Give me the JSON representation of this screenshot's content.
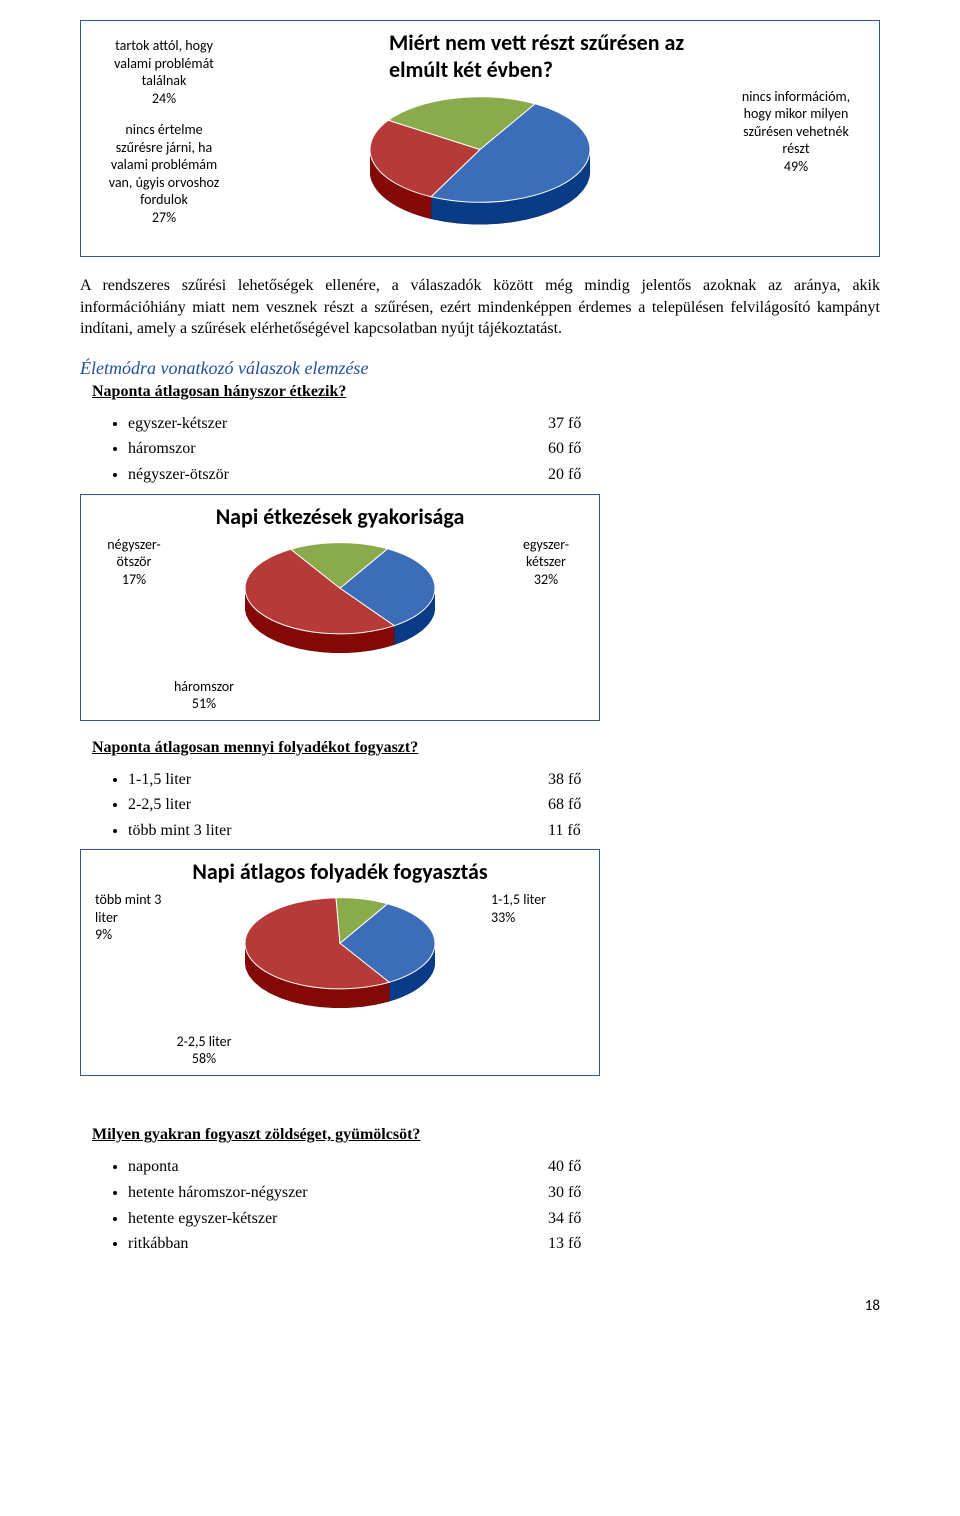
{
  "chart1": {
    "type": "pie",
    "title": "Miért nem vett részt szűrésen az elmúlt két évben?",
    "title_fontsize": 22,
    "background_color": "#ffffff",
    "border_color": "#2a5a9a",
    "slices": [
      {
        "label_lines": [
          "nincs információm,",
          "hogy mikor milyen",
          "szűrésen vehetnék",
          "részt",
          "49%"
        ],
        "value": 49,
        "color": "#3b6db8"
      },
      {
        "label_lines": [
          "nincs értelme",
          "szűrésre járni, ha",
          "valami problémám",
          "van, úgyis orvoshoz",
          "fordulok",
          "27%"
        ],
        "value": 27,
        "color": "#b53a38"
      },
      {
        "label_lines": [
          "tartok attól, hogy",
          "valami problémát",
          "találnak",
          "24%"
        ],
        "value": 24,
        "color": "#8aab4c"
      }
    ],
    "pie_diameter": 220,
    "label_fontsize": 14
  },
  "paragraph": "A rendszeres szűrési lehetőségek ellenére, a válaszadók között még mindig jelentős azoknak az aránya, akik információhiány miatt nem vesznek részt a szűrésen, ezért mindenképpen érdemes a településen felvilágosító kampányt indítani, amely a szűrések elérhetőségével kapcsolatban nyújt tájékoztatást.",
  "section_title": "Életmódra vonatkozó válaszok elemzése",
  "q1": {
    "question": "Naponta átlagosan hányszor étkezik?",
    "items": [
      {
        "k": "egyszer-kétszer",
        "v": "37 fő"
      },
      {
        "k": "háromszor",
        "v": "60 fő"
      },
      {
        "k": "négyszer-ötször",
        "v": "20 fő"
      }
    ]
  },
  "chart2": {
    "type": "pie",
    "title": "Napi étkezések gyakorisága",
    "title_fontsize": 20,
    "background_color": "#ffffff",
    "border_color": "#2a5a9a",
    "slices": [
      {
        "label_lines": [
          "egyszer-",
          "kétszer",
          "32%"
        ],
        "value": 32,
        "color": "#3b6db8"
      },
      {
        "label_lines": [
          "háromszor",
          "51%"
        ],
        "value": 51,
        "color": "#b53a38"
      },
      {
        "label_lines": [
          "négyszer-",
          "ötször",
          "17%"
        ],
        "value": 17,
        "color": "#8aab4c"
      }
    ],
    "pie_diameter": 190,
    "label_fontsize": 14
  },
  "q2": {
    "question": "Naponta átlagosan mennyi folyadékot fogyaszt?",
    "items": [
      {
        "k": "1-1,5 liter",
        "v": "38 fő"
      },
      {
        "k": "2-2,5 liter",
        "v": "68 fő"
      },
      {
        "k": "több mint 3 liter",
        "v": "11 fő"
      }
    ]
  },
  "chart3": {
    "type": "pie",
    "title": "Napi átlagos folyadék fogyasztás",
    "title_fontsize": 20,
    "background_color": "#ffffff",
    "border_color": "#2a5a9a",
    "slices": [
      {
        "label_lines": [
          "1-1,5 liter",
          "33%"
        ],
        "value": 33,
        "color": "#3b6db8"
      },
      {
        "label_lines": [
          "2-2,5 liter",
          "58%"
        ],
        "value": 58,
        "color": "#b53a38"
      },
      {
        "label_lines": [
          "több mint 3",
          "liter",
          "9%"
        ],
        "value": 9,
        "color": "#8aab4c"
      }
    ],
    "pie_diameter": 190,
    "label_fontsize": 14
  },
  "q3": {
    "question": "Milyen gyakran fogyaszt zöldséget, gyümölcsöt?",
    "items": [
      {
        "k": "naponta",
        "v": "40 fő"
      },
      {
        "k": "hetente háromszor-négyszer",
        "v": "30 fő"
      },
      {
        "k": "hetente egyszer-kétszer",
        "v": "34 fő"
      },
      {
        "k": "ritkábban",
        "v": "13 fő"
      }
    ]
  },
  "page_number": "18"
}
